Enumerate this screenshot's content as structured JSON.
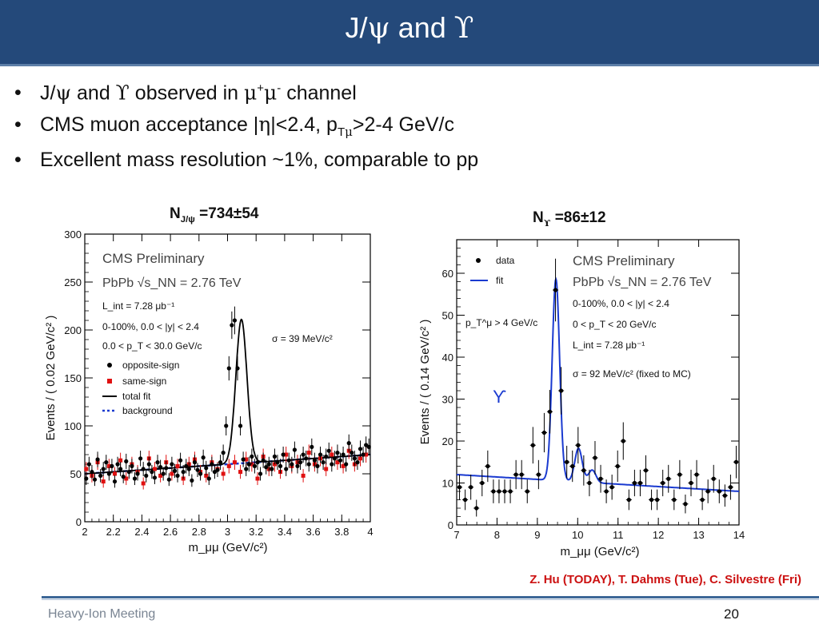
{
  "slide": {
    "title_pre": "J/",
    "title_psi": "ψ",
    "title_mid": " and ",
    "title_ups": "ϒ",
    "bullets": [
      {
        "a": "J/",
        "psi": "ψ",
        "b": " and ",
        "ups": "ϒ",
        "c": " observed in ",
        "mu1": "μ",
        "plus": "+",
        "mu2": "μ",
        "minus": "-",
        "d": " channel"
      },
      {
        "a": "CMS muon acceptance |",
        "eta": "η",
        "b": "|<2.4, p",
        "sub": "T",
        "mu": "μ",
        "c": ">2-4 GeV/c"
      },
      {
        "text": "Excellent mass resolution ~1%, comparable to pp"
      }
    ],
    "credit": "Z. Hu (TODAY), T. Dahms (Tue), C. Silvestre (Fri)",
    "footer": "Heavy-Ion Meeting",
    "page_number": "20",
    "n_jpsi": {
      "n": "N",
      "sub": "J/ψ",
      "val": " =734±54"
    },
    "n_ups": {
      "n": "N",
      "sub": "ϒ",
      "val": " =86±12"
    }
  },
  "colors": {
    "title_bar": "#24497a",
    "credit": "#cc1111",
    "fit": "#000000",
    "background": "#1a3ad0",
    "same_sign": "#e01010",
    "fit_ups": "#1a3ad0"
  },
  "chart_data": [
    {
      "type": "scatter",
      "title": "CMS Preliminary",
      "xlabel": "m_μμ (GeV/c²)",
      "ylabel": "Events / ( 0.02 GeV/c² )",
      "xlim": [
        2,
        4
      ],
      "ylim": [
        0,
        300
      ],
      "xticks": [
        "2",
        "2.2",
        "2.4",
        "2.6",
        "2.8",
        "3",
        "3.2",
        "3.4",
        "3.6",
        "3.8",
        "4"
      ],
      "yticks": [
        "0",
        "50",
        "100",
        "150",
        "200",
        "250",
        "300"
      ],
      "legend_placement": "left",
      "annotations": [
        "PbPb √s_NN = 2.76 TeV",
        "L_int = 7.28 μb⁻¹",
        "0-100%, 0.0 < |y| < 2.4",
        "0.0 < p_T < 30.0 GeV/c",
        "σ = 39 MeV/c²"
      ],
      "legend": [
        "opposite-sign",
        "same-sign",
        "total fit",
        "background"
      ],
      "series": [
        {
          "name": "opposite-sign",
          "x": [
            2.01,
            2.03,
            2.05,
            2.07,
            2.09,
            2.11,
            2.13,
            2.15,
            2.17,
            2.19,
            2.21,
            2.23,
            2.25,
            2.27,
            2.29,
            2.31,
            2.33,
            2.35,
            2.37,
            2.39,
            2.41,
            2.43,
            2.45,
            2.47,
            2.49,
            2.51,
            2.53,
            2.55,
            2.57,
            2.59,
            2.61,
            2.63,
            2.65,
            2.67,
            2.69,
            2.71,
            2.73,
            2.75,
            2.77,
            2.79,
            2.81,
            2.83,
            2.85,
            2.87,
            2.89,
            2.91,
            2.93,
            2.95,
            2.97,
            2.99,
            3.01,
            3.03,
            3.05,
            3.07,
            3.09,
            3.11,
            3.13,
            3.15,
            3.17,
            3.19,
            3.21,
            3.23,
            3.25,
            3.27,
            3.29,
            3.31,
            3.33,
            3.35,
            3.37,
            3.39,
            3.41,
            3.43,
            3.45,
            3.47,
            3.49,
            3.51,
            3.53,
            3.55,
            3.57,
            3.59,
            3.61,
            3.63,
            3.65,
            3.67,
            3.69,
            3.71,
            3.73,
            3.75,
            3.77,
            3.79,
            3.81,
            3.83,
            3.85,
            3.87,
            3.89,
            3.91,
            3.93,
            3.95,
            3.97,
            3.99
          ],
          "y": [
            45,
            60,
            52,
            44,
            65,
            48,
            55,
            62,
            50,
            58,
            42,
            60,
            55,
            47,
            63,
            52,
            58,
            45,
            50,
            66,
            55,
            48,
            60,
            52,
            46,
            62,
            57,
            50,
            56,
            44,
            60,
            53,
            48,
            64,
            52,
            58,
            55,
            43,
            62,
            54,
            50,
            67,
            56,
            45,
            60,
            52,
            54,
            62,
            72,
            100,
            160,
            205,
            210,
            160,
            100,
            65,
            55,
            60,
            68,
            58,
            62,
            50,
            64,
            57,
            60,
            55,
            68,
            62,
            58,
            70,
            55,
            64,
            60,
            75,
            58,
            62,
            70,
            66,
            60,
            78,
            64,
            58,
            70,
            62,
            68,
            74,
            60,
            66,
            72,
            64,
            70,
            60,
            82,
            72,
            66,
            62,
            76,
            70,
            80,
            78
          ]
        },
        {
          "name": "same-sign",
          "x": [
            2.01,
            2.05,
            2.09,
            2.13,
            2.17,
            2.21,
            2.25,
            2.29,
            2.33,
            2.37,
            2.41,
            2.45,
            2.49,
            2.53,
            2.57,
            2.61,
            2.65,
            2.69,
            2.73,
            2.77,
            2.81,
            2.85,
            2.89,
            2.93,
            2.97,
            3.01,
            3.05,
            3.09,
            3.13,
            3.17,
            3.21,
            3.25,
            3.29,
            3.33,
            3.37,
            3.41,
            3.45,
            3.49,
            3.53,
            3.57,
            3.61,
            3.65,
            3.69,
            3.73,
            3.77,
            3.81,
            3.85,
            3.89,
            3.93,
            3.97
          ],
          "y": [
            55,
            48,
            62,
            42,
            58,
            50,
            64,
            45,
            60,
            52,
            40,
            66,
            55,
            48,
            62,
            50,
            58,
            45,
            60,
            65,
            52,
            48,
            62,
            55,
            50,
            58,
            62,
            52,
            65,
            60,
            45,
            68,
            55,
            60,
            52,
            70,
            58,
            62,
            48,
            72,
            60,
            66,
            55,
            70,
            62,
            58,
            74,
            60,
            66,
            70
          ]
        }
      ],
      "fits": [
        {
          "name": "total fit",
          "shape": "gaussian_plus_linear",
          "mean": 3.097,
          "sigma": 0.039,
          "amplitude": 150,
          "bg_at_2": 50,
          "bg_at_4": 70
        },
        {
          "name": "background",
          "shape": "linear",
          "bg_at_2": 50,
          "bg_at_4": 70
        }
      ]
    },
    {
      "type": "scatter",
      "title": "CMS Preliminary",
      "xlabel": "m_μμ (GeV/c²)",
      "ylabel": "Events / ( 0.14 GeV/c² )",
      "xlim": [
        7,
        14
      ],
      "ylim": [
        0,
        68
      ],
      "xticks": [
        "7",
        "8",
        "9",
        "10",
        "11",
        "12",
        "13",
        "14"
      ],
      "yticks": [
        "0",
        "10",
        "20",
        "30",
        "40",
        "50",
        "60"
      ],
      "legend_placement": "top-left",
      "annotations": [
        "PbPb √s_NN = 2.76 TeV",
        "0-100%, 0.0 < |y| < 2.4",
        "0 < p_T < 20 GeV/c",
        "L_int = 7.28 μb⁻¹",
        "σ = 92 MeV/c² (fixed to MC)",
        "p_T^μ > 4 GeV/c",
        "ϒ"
      ],
      "legend": [
        "data",
        "fit"
      ],
      "series": [
        {
          "name": "data",
          "x": [
            7.07,
            7.21,
            7.35,
            7.49,
            7.63,
            7.77,
            7.91,
            8.05,
            8.19,
            8.33,
            8.47,
            8.61,
            8.75,
            8.89,
            9.03,
            9.17,
            9.31,
            9.45,
            9.59,
            9.73,
            9.87,
            10.01,
            10.15,
            10.29,
            10.43,
            10.57,
            10.71,
            10.85,
            10.99,
            11.13,
            11.27,
            11.41,
            11.55,
            11.69,
            11.83,
            11.97,
            12.11,
            12.25,
            12.39,
            12.53,
            12.67,
            12.81,
            12.95,
            13.09,
            13.23,
            13.37,
            13.51,
            13.65,
            13.79,
            13.93
          ],
          "y": [
            9,
            6,
            9,
            4,
            10,
            14,
            8,
            8,
            8,
            8,
            12,
            12,
            8,
            19,
            12,
            22,
            27,
            56,
            32,
            15,
            14,
            19,
            13,
            10,
            16,
            11,
            8,
            9,
            14,
            20,
            6,
            10,
            10,
            13,
            6,
            6,
            10,
            11,
            6,
            12,
            5,
            10,
            12,
            6,
            8,
            11,
            8,
            7,
            9,
            15
          ]
        }
      ],
      "fits": [
        {
          "name": "fit",
          "shape": "three_gaussians_plus_linear",
          "means": [
            9.46,
            10.02,
            10.36
          ],
          "sigma": 0.092,
          "amplitudes": [
            48,
            8,
            3
          ],
          "bg_at_7": 12,
          "bg_at_14": 8
        }
      ]
    }
  ]
}
